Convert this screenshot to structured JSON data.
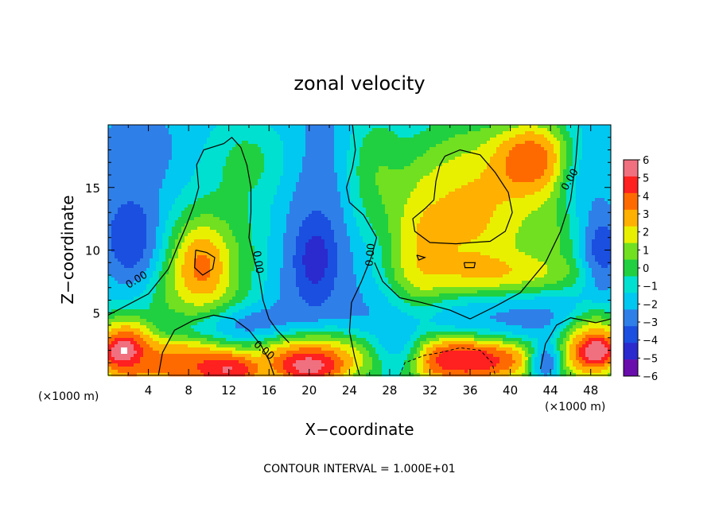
{
  "chart_data": {
    "type": "heatmap",
    "title": "zonal velocity",
    "xlabel": "X−coordinate",
    "ylabel": "Z−coordinate",
    "x_unit_left": "(×1000 m)",
    "x_unit_right": "(×1000 m)",
    "footer": "CONTOUR INTERVAL = 1.000E+01",
    "xlim": [
      0,
      50
    ],
    "ylim": [
      0,
      20
    ],
    "x_ticks": [
      "4",
      "8",
      "12",
      "16",
      "20",
      "24",
      "28",
      "32",
      "36",
      "40",
      "44",
      "48"
    ],
    "x_tick_values": [
      4,
      8,
      12,
      16,
      20,
      24,
      28,
      32,
      36,
      40,
      44,
      48
    ],
    "y_ticks": [
      "5",
      "10",
      "15"
    ],
    "y_tick_values": [
      5,
      10,
      15
    ],
    "colorbar": {
      "labels": [
        "6",
        "5",
        "4",
        "3",
        "2",
        "1",
        "0",
        "−1",
        "−2",
        "−3",
        "−4",
        "−5",
        "−6"
      ],
      "min": -6,
      "max": 6,
      "colors": [
        "#6a0dad",
        "#2a2acf",
        "#1a4fe0",
        "#2f7fe8",
        "#00c8f0",
        "#00e0d0",
        "#20d040",
        "#70e020",
        "#e8f000",
        "#ffb000",
        "#ff6a00",
        "#ff2020",
        "#f07080"
      ]
    },
    "contour_labels": [
      "0.00",
      "0.00",
      "0.00",
      "0.00",
      "0.00"
    ],
    "saturated_color": "#ffffff",
    "blobs": [
      {
        "x": 25,
        "y": 13,
        "rx": 26,
        "ry": 14,
        "v": -3.5
      },
      {
        "x": 4,
        "y": 16,
        "rx": 7,
        "ry": 5,
        "v": -3.5
      },
      {
        "x": 3,
        "y": 11,
        "rx": 3,
        "ry": 3.5,
        "v": -6
      },
      {
        "x": 13,
        "y": 13,
        "rx": 8,
        "ry": 7,
        "v": 1
      },
      {
        "x": 14,
        "y": 17,
        "rx": 4,
        "ry": 3,
        "v": 1.5
      },
      {
        "x": 9.5,
        "y": 9,
        "rx": 5,
        "ry": 5.5,
        "v": 5
      },
      {
        "x": 9.5,
        "y": 9,
        "rx": 2.4,
        "ry": 3,
        "v": 8
      },
      {
        "x": 20,
        "y": 11,
        "rx": 4,
        "ry": 6.5,
        "v": -5
      },
      {
        "x": 20.5,
        "y": 9.5,
        "rx": 1.8,
        "ry": 2.8,
        "v": -8
      },
      {
        "x": 26.5,
        "y": 16,
        "rx": 3,
        "ry": 5,
        "v": 3
      },
      {
        "x": 35,
        "y": 13,
        "rx": 8,
        "ry": 7,
        "v": 8
      },
      {
        "x": 31,
        "y": 10,
        "rx": 3,
        "ry": 5,
        "v": 5
      },
      {
        "x": 42,
        "y": 17,
        "rx": 4,
        "ry": 3,
        "v": 8
      },
      {
        "x": 38,
        "y": 8.3,
        "rx": 8,
        "ry": 1.6,
        "v": 4.5
      },
      {
        "x": 44,
        "y": 12,
        "rx": 3,
        "ry": 4,
        "v": 2
      },
      {
        "x": 47,
        "y": 15,
        "rx": 2.5,
        "ry": 4,
        "v": -3
      },
      {
        "x": 49,
        "y": 10,
        "rx": 2,
        "ry": 3,
        "v": -5
      },
      {
        "x": 38,
        "y": 4.5,
        "rx": 10,
        "ry": 2,
        "v": -3.8
      },
      {
        "x": 13,
        "y": 4.2,
        "rx": 6,
        "ry": 1.5,
        "v": -4.5
      },
      {
        "x": 9,
        "y": 5.5,
        "rx": 3,
        "ry": 1.5,
        "v": 1.5
      },
      {
        "x": 8,
        "y": 1,
        "rx": 5,
        "ry": 2,
        "v": 6
      },
      {
        "x": 12,
        "y": 0.5,
        "rx": 3,
        "ry": 1.2,
        "v": 8
      },
      {
        "x": 20,
        "y": 1.5,
        "rx": 6,
        "ry": 2.2,
        "v": 7
      },
      {
        "x": 20,
        "y": 0.8,
        "rx": 3,
        "ry": 1.2,
        "v": 9
      },
      {
        "x": 2,
        "y": 2,
        "rx": 3,
        "ry": 2.5,
        "v": 6
      },
      {
        "x": 1.5,
        "y": 2,
        "rx": 1.5,
        "ry": 1,
        "v": 9
      },
      {
        "x": 35,
        "y": 1.5,
        "rx": 7,
        "ry": 2,
        "v": 9
      },
      {
        "x": 29,
        "y": 2,
        "rx": 2.5,
        "ry": 2,
        "v": -5
      },
      {
        "x": 48,
        "y": 2.5,
        "rx": 3,
        "ry": 2.5,
        "v": 6
      },
      {
        "x": 48.5,
        "y": 2,
        "rx": 1.5,
        "ry": 1,
        "v": 9
      },
      {
        "x": 43.5,
        "y": 1.2,
        "rx": 1.5,
        "ry": 1.5,
        "v": -5
      }
    ]
  }
}
